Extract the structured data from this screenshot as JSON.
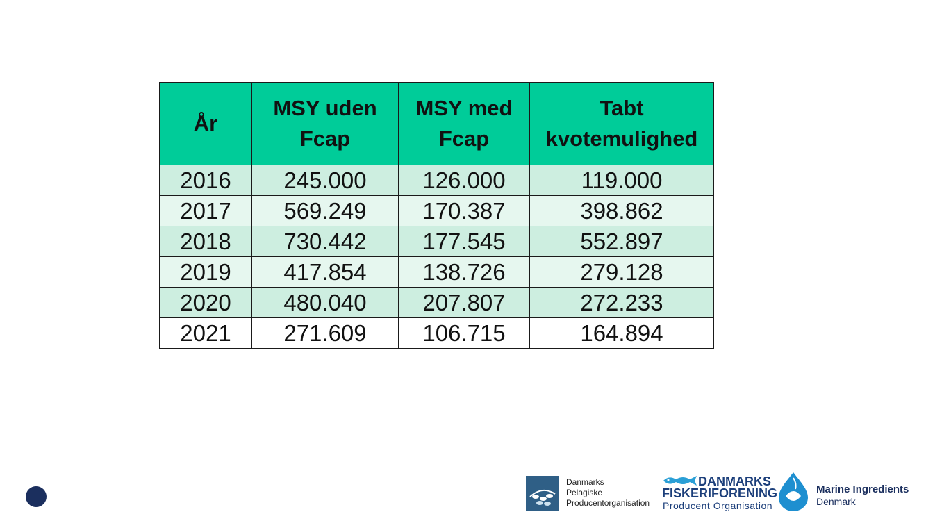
{
  "table": {
    "headers": [
      [
        "År"
      ],
      [
        "MSY uden",
        "Fcap"
      ],
      [
        "MSY med",
        "Fcap"
      ],
      [
        "Tabt",
        "kvotemulighed"
      ]
    ],
    "rows": [
      [
        "2016",
        "245.000",
        "126.000",
        "119.000"
      ],
      [
        "2017",
        "569.249",
        "170.387",
        "398.862"
      ],
      [
        "2018",
        "730.442",
        "177.545",
        "552.897"
      ],
      [
        "2019",
        "417.854",
        "138.726",
        "279.128"
      ],
      [
        "2020",
        "480.040",
        "207.807",
        "272.233"
      ],
      [
        "2021",
        "271.609",
        "106.715",
        "164.894"
      ]
    ]
  },
  "logos": {
    "dpo": {
      "lines": [
        "Danmarks",
        "Pelagiske",
        "Producentorganisation"
      ],
      "icon": "fish-school-icon"
    },
    "dfpo": {
      "line1": "DANMARKS",
      "line2": "FISKERIFORENING",
      "line3": "Producent Organisation",
      "icon": "fish-icon"
    },
    "mid": {
      "name": "Marine Ingredients",
      "sub": "Denmark",
      "icon": "drop-fish-icon"
    }
  },
  "colors": {
    "header": "#00cc99",
    "row_a": "#cdeee0",
    "row_b": "#e6f7ef",
    "navy": "#1b2f5e"
  }
}
